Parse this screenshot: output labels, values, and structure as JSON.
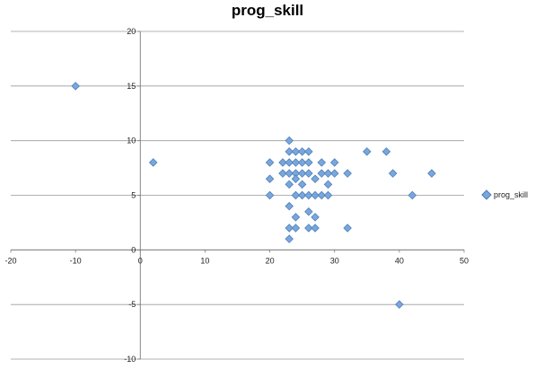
{
  "chart_data": {
    "type": "scatter",
    "title": "prog_skill",
    "xlabel": "",
    "ylabel": "",
    "xlim": [
      -20,
      50
    ],
    "ylim": [
      -10,
      20
    ],
    "xticks": [
      "-20",
      "-10",
      "0",
      "10",
      "20",
      "30",
      "40",
      "50"
    ],
    "yticks": [
      "-10",
      "-5",
      "0",
      "5",
      "10",
      "15",
      "20"
    ],
    "grid": "horizontal",
    "legend": "right",
    "marker_color": "#79a7dd",
    "marker_edge": "#4e7fb8",
    "series": [
      {
        "name": "prog_skill",
        "points": [
          [
            -10,
            15
          ],
          [
            2,
            8
          ],
          [
            40,
            -5
          ],
          [
            20,
            8
          ],
          [
            20,
            6.5
          ],
          [
            20,
            5
          ],
          [
            22,
            8
          ],
          [
            22,
            7
          ],
          [
            23,
            10
          ],
          [
            23,
            9
          ],
          [
            23,
            8
          ],
          [
            23,
            7
          ],
          [
            23,
            6
          ],
          [
            23,
            4
          ],
          [
            23,
            2
          ],
          [
            23,
            1
          ],
          [
            24,
            9
          ],
          [
            24,
            8
          ],
          [
            24,
            7
          ],
          [
            24,
            6.5
          ],
          [
            24,
            5
          ],
          [
            24,
            3
          ],
          [
            24,
            2
          ],
          [
            25,
            9
          ],
          [
            25,
            8
          ],
          [
            25,
            7
          ],
          [
            25,
            6
          ],
          [
            25,
            5
          ],
          [
            26,
            9
          ],
          [
            26,
            8
          ],
          [
            26,
            7
          ],
          [
            26,
            5
          ],
          [
            26,
            3.5
          ],
          [
            26,
            2
          ],
          [
            27,
            6.5
          ],
          [
            27,
            5
          ],
          [
            27,
            3
          ],
          [
            27,
            2
          ],
          [
            28,
            8
          ],
          [
            28,
            7
          ],
          [
            28,
            5
          ],
          [
            29,
            7
          ],
          [
            29,
            6
          ],
          [
            29,
            5
          ],
          [
            30,
            8
          ],
          [
            30,
            7
          ],
          [
            32,
            7
          ],
          [
            32,
            2
          ],
          [
            35,
            9
          ],
          [
            38,
            9
          ],
          [
            39,
            7
          ],
          [
            42,
            5
          ],
          [
            45,
            7
          ]
        ]
      }
    ]
  }
}
